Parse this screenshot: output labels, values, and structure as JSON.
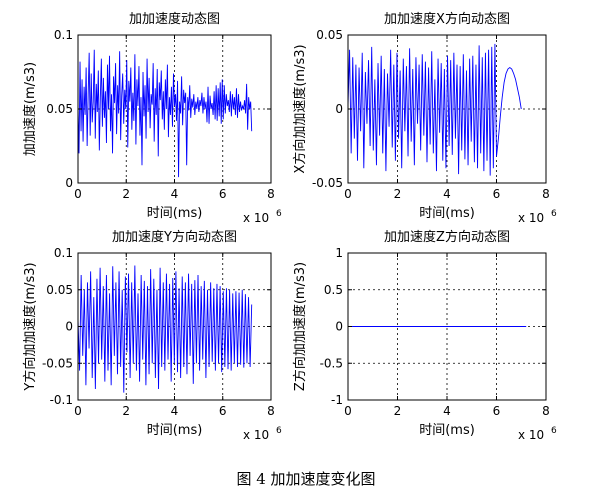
{
  "figure": {
    "caption": "图 4  加加速度变化图"
  },
  "chart_data": [
    {
      "type": "line",
      "title": "加加速度动态图",
      "xlabel": "时间(ms)",
      "ylabel": "加加速度(m/s3)",
      "x_exponent": "x 10",
      "x_exponent_power": "6",
      "xlim": [
        0,
        8
      ],
      "ylim": [
        0,
        0.1
      ],
      "xticks": [
        "0",
        "2",
        "4",
        "6",
        "8"
      ],
      "yticks": [
        "0",
        "0.05",
        "0.1"
      ],
      "grid": "dotted",
      "color": "#0000ff",
      "series": [
        {
          "x_range": [
            0,
            7.2
          ],
          "y": [
            0.052,
            0.02,
            0.082,
            0.035,
            0.07,
            0.028,
            0.065,
            0.046,
            0.078,
            0.025,
            0.06,
            0.088,
            0.032,
            0.074,
            0.041,
            0.055,
            0.09,
            0.03,
            0.067,
            0.048,
            0.076,
            0.022,
            0.058,
            0.084,
            0.038,
            0.071,
            0.044,
            0.062,
            0.027,
            0.08,
            0.05,
            0.086,
            0.035,
            0.06,
            0.02,
            0.072,
            0.054,
            0.081,
            0.033,
            0.066,
            0.047,
            0.089,
            0.029,
            0.059,
            0.074,
            0.04,
            0.063,
            0.05,
            0.083,
            0.024,
            0.069,
            0.055,
            0.078,
            0.036,
            0.061,
            0.042,
            0.087,
            0.026,
            0.07,
            0.052,
            0.079,
            0.032,
            0.058,
            0.012,
            0.075,
            0.045,
            0.066,
            0.03,
            0.084,
            0.048,
            0.071,
            0.037,
            0.06,
            0.053,
            0.081,
            0.028,
            0.064,
            0.046,
            0.077,
            0.018,
            0.068,
            0.056,
            0.076,
            0.043,
            0.062,
            0.036,
            0.07,
            0.05,
            0.08,
            0.031,
            0.058,
            0.046,
            0.065,
            0.038,
            0.074,
            0.052,
            0.06,
            0.042,
            0.069,
            0.004,
            0.055,
            0.047,
            0.072,
            0.039,
            0.063,
            0.054,
            0.061,
            0.012,
            0.058,
            0.049,
            0.066,
            0.044,
            0.057,
            0.051,
            0.06,
            0.046,
            0.055,
            0.05,
            0.058,
            0.048,
            0.056,
            0.052,
            0.061,
            0.047,
            0.058,
            0.05,
            0.055,
            0.041,
            0.065,
            0.04,
            0.059,
            0.05,
            0.054,
            0.046,
            0.062,
            0.043,
            0.066,
            0.042,
            0.064,
            0.045,
            0.068,
            0.04,
            0.07,
            0.043,
            0.066,
            0.047,
            0.06,
            0.052,
            0.056,
            0.048,
            0.062,
            0.045,
            0.06,
            0.05,
            0.058,
            0.046,
            0.064,
            0.044,
            0.06,
            0.048,
            0.055,
            0.049,
            0.052,
            0.05,
            0.056,
            0.047,
            0.067,
            0.036,
            0.058,
            0.05,
            0.055,
            0.035
          ]
        }
      ]
    },
    {
      "type": "line",
      "title": "加加速度X方向动态图",
      "xlabel": "时间(ms)",
      "ylabel": "X方向加加速度(m/s3)",
      "x_exponent": "x 10",
      "x_exponent_power": "6",
      "xlim": [
        0,
        8
      ],
      "ylim": [
        -0.05,
        0.05
      ],
      "xticks": [
        "0",
        "2",
        "4",
        "6",
        "8"
      ],
      "yticks": [
        "-0.05",
        "0",
        "0.05"
      ],
      "grid": "dotted",
      "color": "#0000ff",
      "series": [
        {
          "x_range": [
            0,
            6.0
          ],
          "y": [
            0.002,
            0.04,
            -0.03,
            0.035,
            -0.02,
            0.03,
            -0.035,
            0.028,
            -0.015,
            0.038,
            -0.04,
            0.025,
            -0.01,
            0.033,
            -0.025,
            0.042,
            -0.028,
            0.02,
            -0.038,
            0.031,
            -0.018,
            0.036,
            -0.03,
            0.027,
            -0.042,
            0.024,
            -0.012,
            0.04,
            -0.026,
            0.03,
            -0.035,
            0.038,
            -0.02,
            0.026,
            -0.04,
            0.034,
            -0.015,
            0.029,
            -0.032,
            0.041,
            -0.022,
            0.027,
            -0.038,
            0.035,
            -0.01,
            0.03,
            -0.028,
            0.037,
            -0.018,
            0.032,
            -0.036,
            0.028,
            -0.024,
            0.039,
            -0.03,
            0.02,
            -0.042,
            0.034,
            -0.016,
            0.031,
            -0.035,
            0.027,
            -0.04,
            0.036,
            -0.025,
            0.033,
            -0.031,
            0.038,
            -0.02,
            0.03,
            -0.044,
            0.029,
            -0.028,
            0.037,
            -0.034,
            0.026,
            -0.038,
            0.034,
            -0.022,
            0.036,
            -0.036,
            0.03,
            -0.04,
            0.043,
            -0.03,
            0.035,
            -0.042,
            0.038,
            -0.035,
            0.04,
            -0.045,
            0.042,
            -0.04,
            0.044,
            -0.032
          ]
        },
        {
          "x_range": [
            6.0,
            7.0
          ],
          "y": [
            -0.032,
            -0.02,
            -0.005,
            0.008,
            0.018,
            0.024,
            0.027,
            0.028,
            0.027,
            0.024,
            0.02,
            0.014,
            0.008,
            0.0
          ]
        }
      ]
    },
    {
      "type": "line",
      "title": "加加速度Y方向动态图",
      "xlabel": "时间(ms)",
      "ylabel": "Y方向加加速度(m/s3)",
      "x_exponent": "x 10",
      "x_exponent_power": "6",
      "xlim": [
        0,
        8
      ],
      "ylim": [
        -0.1,
        0.1
      ],
      "xticks": [
        "0",
        "2",
        "4",
        "6",
        "8"
      ],
      "yticks": [
        "-0.1",
        "-0.05",
        "0",
        "0.05",
        "0.1"
      ],
      "grid": "dotted",
      "color": "#0000ff",
      "series": [
        {
          "x_range": [
            0,
            7.2
          ],
          "y": [
            0.01,
            -0.06,
            0.07,
            -0.04,
            0.05,
            -0.08,
            0.06,
            -0.03,
            0.075,
            -0.07,
            0.04,
            -0.085,
            0.065,
            -0.05,
            0.08,
            -0.045,
            0.055,
            -0.075,
            0.07,
            -0.06,
            0.045,
            -0.08,
            0.082,
            -0.04,
            0.06,
            -0.065,
            0.075,
            -0.055,
            0.05,
            -0.09,
            0.068,
            -0.035,
            0.072,
            -0.07,
            0.06,
            -0.05,
            0.083,
            -0.06,
            0.045,
            -0.075,
            0.07,
            -0.045,
            0.062,
            -0.08,
            0.055,
            -0.065,
            0.078,
            -0.05,
            0.065,
            -0.07,
            0.05,
            -0.085,
            0.08,
            -0.055,
            0.06,
            -0.06,
            0.072,
            -0.045,
            0.058,
            -0.075,
            0.066,
            -0.05,
            0.075,
            -0.062,
            0.052,
            -0.07,
            0.068,
            -0.055,
            0.06,
            -0.065,
            0.072,
            -0.04,
            0.058,
            -0.078,
            0.063,
            -0.05,
            0.07,
            -0.06,
            0.055,
            -0.045,
            0.062,
            -0.07,
            0.05,
            -0.055,
            0.06,
            -0.048,
            0.052,
            -0.06,
            0.058,
            -0.05,
            0.055,
            -0.062,
            0.048,
            -0.055,
            0.052,
            -0.058,
            0.05,
            -0.06,
            0.045,
            -0.05,
            0.048,
            -0.055,
            0.046,
            -0.052,
            0.05,
            -0.056,
            0.044,
            -0.05,
            0.04,
            -0.055,
            0.03
          ]
        }
      ]
    },
    {
      "type": "line",
      "title": "加加速度Z方向动态图",
      "xlabel": "时间(ms)",
      "ylabel": "Z方向加加速度(m/s3)",
      "x_exponent": "x 10",
      "x_exponent_power": "6",
      "xlim": [
        0,
        8
      ],
      "ylim": [
        -1,
        1
      ],
      "xticks": [
        "0",
        "2",
        "4",
        "6",
        "8"
      ],
      "yticks": [
        "-1",
        "-0.5",
        "0",
        "0.5",
        "1"
      ],
      "grid": "dotted",
      "color": "#0000ff",
      "series": [
        {
          "x_range": [
            0,
            7.2
          ],
          "y": [
            0,
            0
          ]
        }
      ]
    }
  ]
}
